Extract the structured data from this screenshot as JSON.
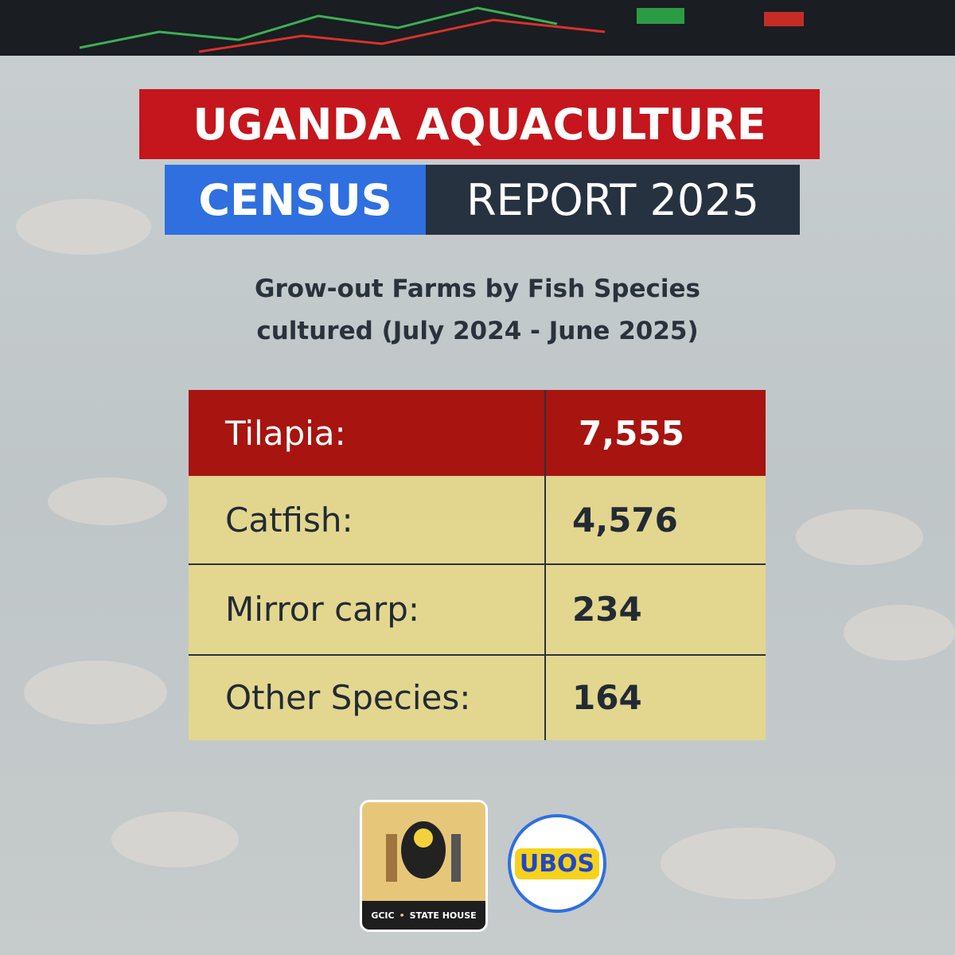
{
  "header": {
    "title_line1": "UGANDA AQUACULTURE",
    "title_highlight": "CENSUS",
    "title_rest": "REPORT 2025"
  },
  "subtitle": {
    "line1": "Grow-out Farms by Fish Species",
    "line2": "cultured (July 2024 - June 2025)"
  },
  "table": {
    "rows": [
      [
        "Tilapia:",
        "7,555"
      ],
      [
        "Catfish:",
        "4,576"
      ],
      [
        "Mirror carp:",
        "234"
      ],
      [
        "Other Species:",
        "164"
      ]
    ]
  },
  "logos": {
    "gcic": "GCIC",
    "state_house": "STATE HOUSE",
    "ubos": "UBOS"
  }
}
